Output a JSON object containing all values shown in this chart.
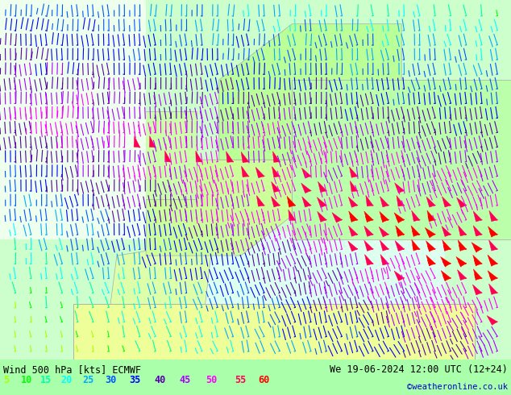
{
  "title_left": "Wind 500 hPa [kts] ECMWF",
  "title_right": "We 19-06-2024 12:00 UTC (12+24)",
  "copyright": "©weatheronline.co.uk",
  "legend_values": [
    5,
    10,
    15,
    20,
    25,
    30,
    35,
    40,
    45,
    50,
    55,
    60
  ],
  "legend_colors": [
    "#aaff00",
    "#00ff00",
    "#00ffaa",
    "#00ffff",
    "#00aaff",
    "#0055ff",
    "#0000ff",
    "#5500aa",
    "#aa00ff",
    "#ff00ff",
    "#ff0055",
    "#ff0000"
  ],
  "bg_color": "#aaffaa",
  "bottom_bar_color": "#ffffff",
  "fig_width": 6.34,
  "fig_height": 4.9,
  "dpi": 100
}
